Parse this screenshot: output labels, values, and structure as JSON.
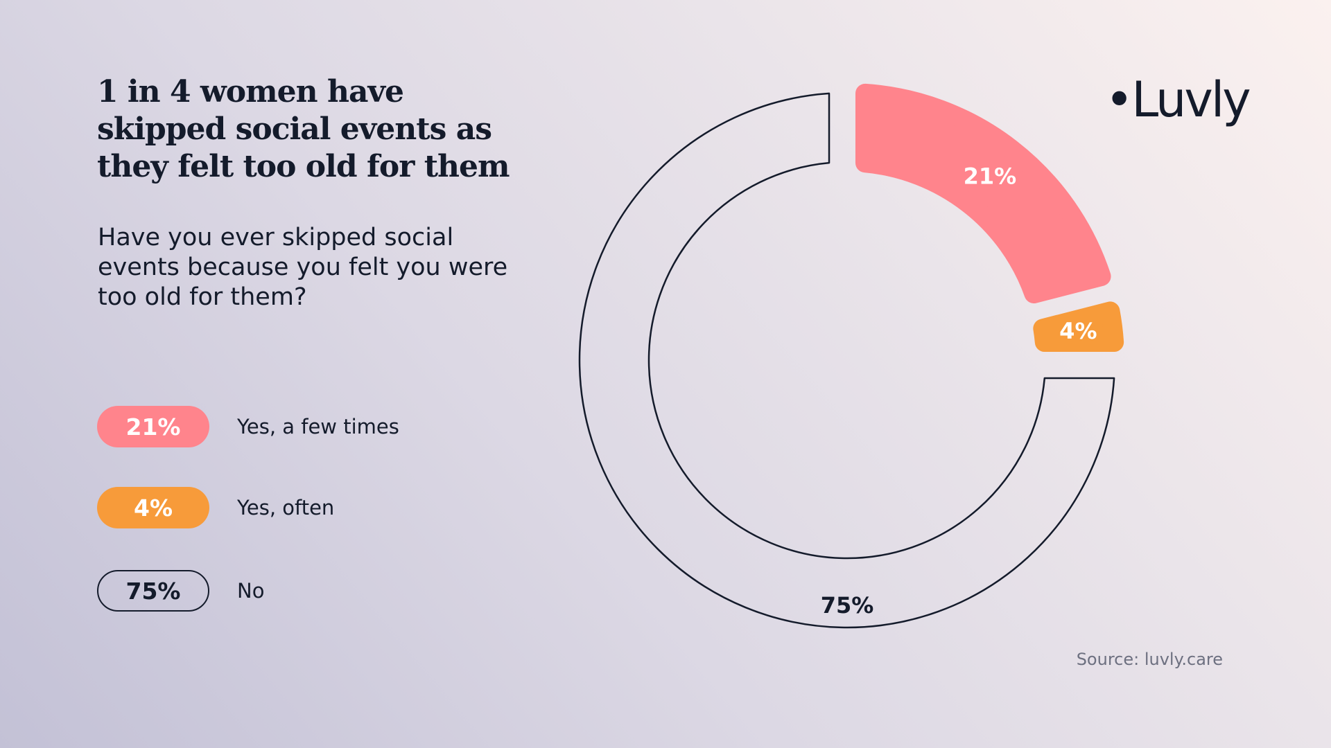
{
  "title": "1 in 4 women have skipped social events as they felt too old for them",
  "question": "Have you ever skipped social events because you felt you were too old for them?",
  "logo": "•Luvly",
  "source": "Source: luvly.care",
  "colors": {
    "yes_few": "#ff848c",
    "yes_often": "#f79b3a",
    "no": "#141b2b",
    "text": "#141b2b"
  },
  "chart_data": {
    "type": "pie",
    "style": "donut",
    "title": "1 in 4 women have skipped social events as they felt too old for them",
    "series": [
      {
        "name": "Yes, a few times",
        "value": 21,
        "label": "21%",
        "color": "#ff848c",
        "style": "filled"
      },
      {
        "name": "Yes, often",
        "value": 4,
        "label": "4%",
        "color": "#f79b3a",
        "style": "filled"
      },
      {
        "name": "No",
        "value": 75,
        "label": "75%",
        "color": "#141b2b",
        "style": "outline"
      }
    ],
    "legend_placement": "left"
  }
}
